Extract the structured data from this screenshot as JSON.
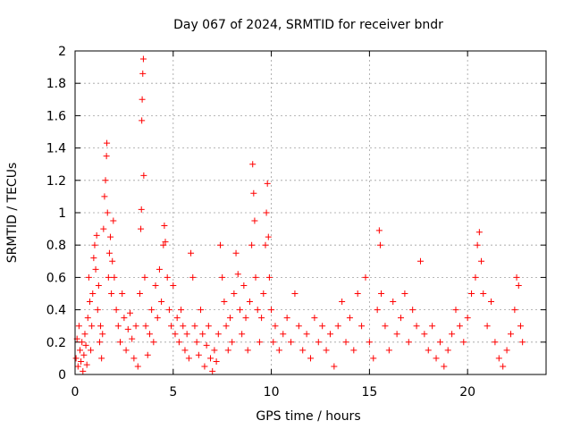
{
  "chart_data": {
    "type": "scatter",
    "title": "Day 067 of 2024, SRMTID for receiver bndr",
    "xlabel": "GPS time / hours",
    "ylabel": "SRMTID / TECUs",
    "xlim": [
      0,
      24
    ],
    "ylim": [
      0,
      2
    ],
    "xticks": [
      0,
      5,
      10,
      15,
      20
    ],
    "xtick_labels": [
      "0",
      "5",
      "10",
      "15",
      "20"
    ],
    "yticks": [
      0,
      0.2,
      0.4,
      0.6,
      0.8,
      1,
      1.2,
      1.4,
      1.6,
      1.8,
      2
    ],
    "ytick_labels": [
      "0",
      "0.2",
      "0.4",
      "0.6",
      "0.8",
      "1",
      "1.2",
      "1.4",
      "1.6",
      "1.8",
      "2"
    ],
    "grid": true,
    "marker": "+",
    "marker_color": "#ff0000",
    "series": [
      {
        "name": "SRMTID",
        "points": [
          [
            0.05,
            0.1
          ],
          [
            0.1,
            0.22
          ],
          [
            0.15,
            0.05
          ],
          [
            0.2,
            0.3
          ],
          [
            0.25,
            0.15
          ],
          [
            0.3,
            0.08
          ],
          [
            0.35,
            0.2
          ],
          [
            0.4,
            0.02
          ],
          [
            0.45,
            0.12
          ],
          [
            0.5,
            0.25
          ],
          [
            0.55,
            0.18
          ],
          [
            0.6,
            0.06
          ],
          [
            0.65,
            0.35
          ],
          [
            0.7,
            0.6
          ],
          [
            0.75,
            0.45
          ],
          [
            0.8,
            0.15
          ],
          [
            0.85,
            0.3
          ],
          [
            0.9,
            0.5
          ],
          [
            0.95,
            0.72
          ],
          [
            1.0,
            0.8
          ],
          [
            1.05,
            0.65
          ],
          [
            1.1,
            0.86
          ],
          [
            1.15,
            0.4
          ],
          [
            1.2,
            0.55
          ],
          [
            1.25,
            0.2
          ],
          [
            1.3,
            0.3
          ],
          [
            1.35,
            0.1
          ],
          [
            1.4,
            0.25
          ],
          [
            1.45,
            0.9
          ],
          [
            1.5,
            1.1
          ],
          [
            1.55,
            1.2
          ],
          [
            1.6,
            1.35
          ],
          [
            1.62,
            1.43
          ],
          [
            1.65,
            1.0
          ],
          [
            1.7,
            0.6
          ],
          [
            1.75,
            0.75
          ],
          [
            1.8,
            0.85
          ],
          [
            1.85,
            0.5
          ],
          [
            1.9,
            0.7
          ],
          [
            1.95,
            0.95
          ],
          [
            2.0,
            0.6
          ],
          [
            2.1,
            0.4
          ],
          [
            2.2,
            0.3
          ],
          [
            2.3,
            0.2
          ],
          [
            2.4,
            0.5
          ],
          [
            2.5,
            0.35
          ],
          [
            2.6,
            0.15
          ],
          [
            2.7,
            0.28
          ],
          [
            2.8,
            0.38
          ],
          [
            2.9,
            0.22
          ],
          [
            3.0,
            0.1
          ],
          [
            3.1,
            0.3
          ],
          [
            3.2,
            0.05
          ],
          [
            3.3,
            0.5
          ],
          [
            3.35,
            0.9
          ],
          [
            3.38,
            1.02
          ],
          [
            3.4,
            1.57
          ],
          [
            3.42,
            1.7
          ],
          [
            3.45,
            1.86
          ],
          [
            3.48,
            1.95
          ],
          [
            3.5,
            1.23
          ],
          [
            3.55,
            0.6
          ],
          [
            3.6,
            0.3
          ],
          [
            3.7,
            0.12
          ],
          [
            3.8,
            0.25
          ],
          [
            3.9,
            0.4
          ],
          [
            4.0,
            0.2
          ],
          [
            4.1,
            0.55
          ],
          [
            4.2,
            0.35
          ],
          [
            4.3,
            0.65
          ],
          [
            4.4,
            0.45
          ],
          [
            4.5,
            0.8
          ],
          [
            4.55,
            0.92
          ],
          [
            4.6,
            0.82
          ],
          [
            4.7,
            0.6
          ],
          [
            4.8,
            0.4
          ],
          [
            4.9,
            0.3
          ],
          [
            5.0,
            0.55
          ],
          [
            5.1,
            0.25
          ],
          [
            5.2,
            0.35
          ],
          [
            5.3,
            0.2
          ],
          [
            5.4,
            0.4
          ],
          [
            5.5,
            0.3
          ],
          [
            5.6,
            0.15
          ],
          [
            5.7,
            0.25
          ],
          [
            5.8,
            0.1
          ],
          [
            5.9,
            0.75
          ],
          [
            6.0,
            0.6
          ],
          [
            6.1,
            0.3
          ],
          [
            6.2,
            0.2
          ],
          [
            6.3,
            0.12
          ],
          [
            6.4,
            0.4
          ],
          [
            6.5,
            0.25
          ],
          [
            6.6,
            0.05
          ],
          [
            6.7,
            0.18
          ],
          [
            6.8,
            0.3
          ],
          [
            6.9,
            0.1
          ],
          [
            7.0,
            0.02
          ],
          [
            7.1,
            0.15
          ],
          [
            7.2,
            0.08
          ],
          [
            7.3,
            0.25
          ],
          [
            7.4,
            0.8
          ],
          [
            7.5,
            0.6
          ],
          [
            7.6,
            0.45
          ],
          [
            7.7,
            0.3
          ],
          [
            7.8,
            0.15
          ],
          [
            7.9,
            0.35
          ],
          [
            8.0,
            0.2
          ],
          [
            8.1,
            0.5
          ],
          [
            8.2,
            0.75
          ],
          [
            8.3,
            0.62
          ],
          [
            8.4,
            0.4
          ],
          [
            8.5,
            0.25
          ],
          [
            8.6,
            0.55
          ],
          [
            8.7,
            0.35
          ],
          [
            8.8,
            0.15
          ],
          [
            8.9,
            0.45
          ],
          [
            9.0,
            0.8
          ],
          [
            9.05,
            1.3
          ],
          [
            9.1,
            1.12
          ],
          [
            9.15,
            0.95
          ],
          [
            9.2,
            0.6
          ],
          [
            9.3,
            0.4
          ],
          [
            9.4,
            0.2
          ],
          [
            9.5,
            0.35
          ],
          [
            9.6,
            0.5
          ],
          [
            9.7,
            0.8
          ],
          [
            9.75,
            1.0
          ],
          [
            9.8,
            1.18
          ],
          [
            9.85,
            0.85
          ],
          [
            9.9,
            0.6
          ],
          [
            10.0,
            0.4
          ],
          [
            10.1,
            0.2
          ],
          [
            10.2,
            0.3
          ],
          [
            10.4,
            0.15
          ],
          [
            10.6,
            0.25
          ],
          [
            10.8,
            0.35
          ],
          [
            11.0,
            0.2
          ],
          [
            11.2,
            0.5
          ],
          [
            11.4,
            0.3
          ],
          [
            11.6,
            0.15
          ],
          [
            11.8,
            0.25
          ],
          [
            12.0,
            0.1
          ],
          [
            12.2,
            0.35
          ],
          [
            12.4,
            0.2
          ],
          [
            12.6,
            0.3
          ],
          [
            12.8,
            0.15
          ],
          [
            13.0,
            0.25
          ],
          [
            13.2,
            0.05
          ],
          [
            13.4,
            0.3
          ],
          [
            13.6,
            0.45
          ],
          [
            13.8,
            0.2
          ],
          [
            14.0,
            0.35
          ],
          [
            14.2,
            0.15
          ],
          [
            14.4,
            0.5
          ],
          [
            14.6,
            0.3
          ],
          [
            14.8,
            0.6
          ],
          [
            15.0,
            0.2
          ],
          [
            15.2,
            0.1
          ],
          [
            15.4,
            0.4
          ],
          [
            15.5,
            0.89
          ],
          [
            15.55,
            0.8
          ],
          [
            15.6,
            0.5
          ],
          [
            15.8,
            0.3
          ],
          [
            16.0,
            0.15
          ],
          [
            16.2,
            0.45
          ],
          [
            16.4,
            0.25
          ],
          [
            16.6,
            0.35
          ],
          [
            16.8,
            0.5
          ],
          [
            17.0,
            0.2
          ],
          [
            17.2,
            0.4
          ],
          [
            17.4,
            0.3
          ],
          [
            17.6,
            0.7
          ],
          [
            17.8,
            0.25
          ],
          [
            18.0,
            0.15
          ],
          [
            18.2,
            0.3
          ],
          [
            18.4,
            0.1
          ],
          [
            18.6,
            0.2
          ],
          [
            18.8,
            0.05
          ],
          [
            19.0,
            0.15
          ],
          [
            19.2,
            0.25
          ],
          [
            19.4,
            0.4
          ],
          [
            19.6,
            0.3
          ],
          [
            19.8,
            0.2
          ],
          [
            20.0,
            0.35
          ],
          [
            20.2,
            0.5
          ],
          [
            20.4,
            0.6
          ],
          [
            20.5,
            0.8
          ],
          [
            20.6,
            0.88
          ],
          [
            20.7,
            0.7
          ],
          [
            20.8,
            0.5
          ],
          [
            21.0,
            0.3
          ],
          [
            21.2,
            0.45
          ],
          [
            21.4,
            0.2
          ],
          [
            21.6,
            0.1
          ],
          [
            21.8,
            0.05
          ],
          [
            22.0,
            0.15
          ],
          [
            22.2,
            0.25
          ],
          [
            22.4,
            0.4
          ],
          [
            22.5,
            0.6
          ],
          [
            22.6,
            0.55
          ],
          [
            22.7,
            0.3
          ],
          [
            22.8,
            0.2
          ]
        ]
      }
    ]
  }
}
